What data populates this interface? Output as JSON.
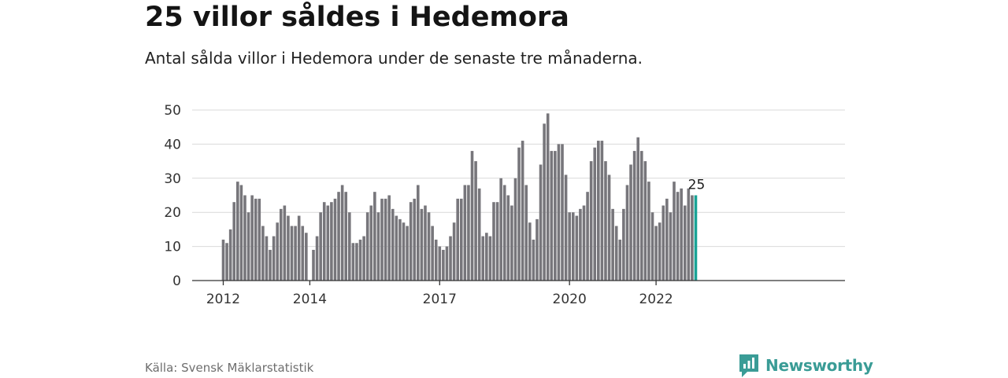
{
  "title": "25 villor såldes i Hedemora",
  "subtitle": "Antal sålda villor i Hedemora under de senaste tre månaderna.",
  "source": "Källa: Svensk Mäklarstatistik",
  "brand": {
    "name": "Newsworthy",
    "icon": "newsworthy-logo-icon"
  },
  "colors": {
    "bar": "#77767b",
    "highlight": "#1aa396",
    "grid": "#d9d9d9",
    "axis": "#333333"
  },
  "chart_data": {
    "type": "bar",
    "title": "",
    "xlabel": "",
    "ylabel": "",
    "ylim": [
      0,
      50
    ],
    "y_ticks": [
      0,
      10,
      20,
      30,
      40,
      50
    ],
    "x_ticks": [
      {
        "label": "2012",
        "index": 0
      },
      {
        "label": "2014",
        "index": 24
      },
      {
        "label": "2017",
        "index": 60
      },
      {
        "label": "2020",
        "index": 96
      },
      {
        "label": "2022",
        "index": 120
      }
    ],
    "grid": true,
    "highlight_index": 131,
    "highlight_label": "25",
    "values": [
      12,
      11,
      15,
      23,
      29,
      28,
      25,
      20,
      25,
      24,
      24,
      16,
      13,
      9,
      13,
      17,
      21,
      22,
      19,
      16,
      16,
      19,
      16,
      14,
      null,
      9,
      13,
      20,
      23,
      22,
      23,
      24,
      26,
      28,
      26,
      20,
      11,
      11,
      12,
      13,
      20,
      22,
      26,
      20,
      24,
      24,
      25,
      21,
      19,
      18,
      17,
      16,
      23,
      24,
      28,
      21,
      22,
      20,
      16,
      12,
      10,
      9,
      10,
      13,
      17,
      24,
      24,
      28,
      28,
      38,
      35,
      27,
      13,
      14,
      13,
      23,
      23,
      30,
      28,
      25,
      22,
      30,
      39,
      41,
      28,
      17,
      12,
      18,
      34,
      46,
      49,
      38,
      38,
      40,
      40,
      31,
      20,
      20,
      19,
      21,
      22,
      26,
      35,
      39,
      41,
      41,
      35,
      31,
      21,
      16,
      12,
      21,
      28,
      34,
      38,
      42,
      38,
      35,
      29,
      20,
      16,
      17,
      22,
      24,
      20,
      29,
      26,
      27,
      22,
      27,
      25,
      25
    ]
  }
}
